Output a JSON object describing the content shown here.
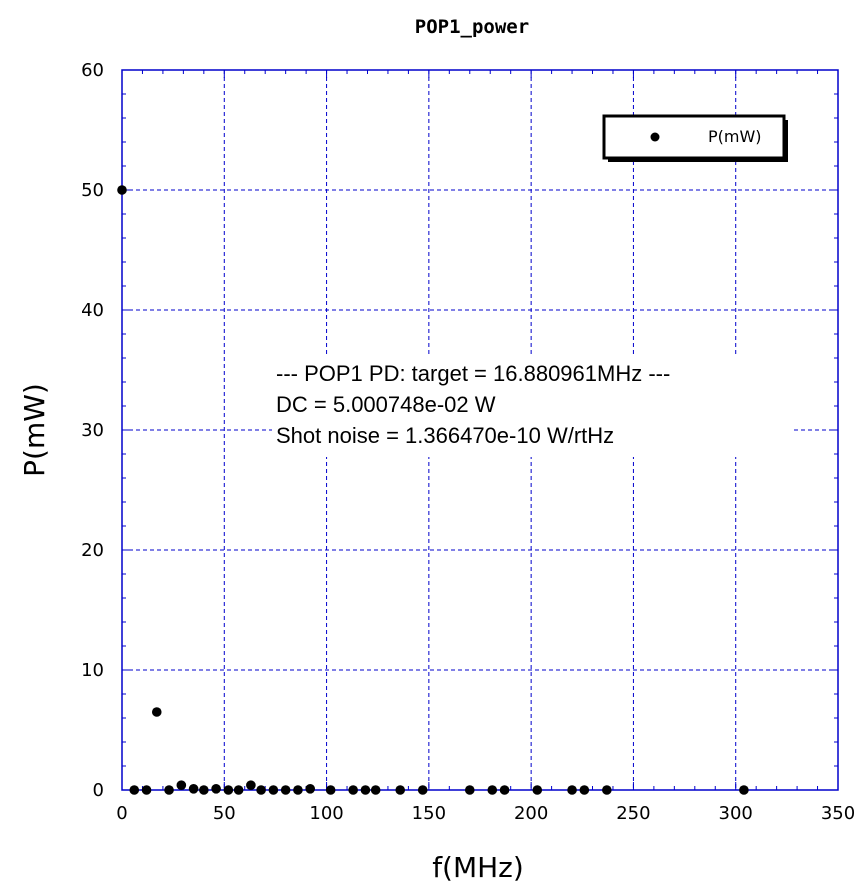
{
  "chart_data": {
    "type": "scatter",
    "title": "POP1_power",
    "xlabel": "f(MHz)",
    "ylabel": "P(mW)",
    "xlim": [
      0,
      350
    ],
    "ylim": [
      0,
      60
    ],
    "xticks": [
      0,
      50,
      100,
      150,
      200,
      250,
      300,
      350
    ],
    "yticks": [
      0,
      10,
      20,
      30,
      40,
      50,
      60
    ],
    "grid": true,
    "legend_position": "top-right",
    "colors": {
      "marker": "#000000",
      "grid": "#0000cc",
      "axis": "#0000cc"
    },
    "series": [
      {
        "name": "P(mW)",
        "x": [
          0,
          6,
          12,
          17,
          23,
          29,
          35,
          40,
          46,
          52,
          57,
          63,
          68,
          74,
          80,
          86,
          92,
          102,
          113,
          119,
          124,
          136,
          147,
          170,
          181,
          187,
          203,
          220,
          226,
          237,
          304
        ],
        "y": [
          50.0,
          0.0,
          0.0,
          6.5,
          0.0,
          0.4,
          0.1,
          0.0,
          0.1,
          0.0,
          0.0,
          0.4,
          0.0,
          0.0,
          0.0,
          0.0,
          0.1,
          0.0,
          0.0,
          0.0,
          0.0,
          0.0,
          0.0,
          0.0,
          0.0,
          0.0,
          0.0,
          0.0,
          0.0,
          0.0,
          0.0
        ]
      }
    ],
    "annotations": [
      "--- POP1 PD: target = 16.880961MHz ---",
      "DC = 5.000748e-02 W",
      "Shot noise = 1.366470e-10 W/rtHz"
    ]
  }
}
